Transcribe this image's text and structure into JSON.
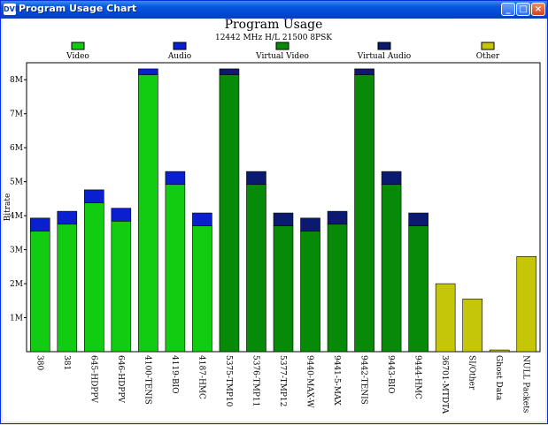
{
  "window": {
    "icon_text": "DVB",
    "title": "Program Usage Chart",
    "buttons": {
      "minimize": "_",
      "maximize": "□",
      "close": "×"
    }
  },
  "colors": {
    "video": "#11cc11",
    "audio": "#0a1fd0",
    "virtual_video": "#078a07",
    "virtual_audio": "#0a1a70",
    "other": "#c6c608"
  },
  "chart_data": {
    "type": "bar",
    "stacked": true,
    "title": "Program Usage",
    "subtitle": "12442 MHz H/L 21500 8PSK",
    "xlabel": "",
    "ylabel": "Bitrate",
    "ylim": [
      0,
      8500000
    ],
    "yticks": [
      1000000,
      2000000,
      3000000,
      4000000,
      5000000,
      6000000,
      7000000,
      8000000
    ],
    "ytick_labels": [
      "1M",
      "2M",
      "3M",
      "4M",
      "5M",
      "6M",
      "7M",
      "8M"
    ],
    "grid": false,
    "legend_position": "top",
    "categories": [
      "380",
      "381",
      "645-HDPPV",
      "646-HDPPV",
      "4100-TENIS",
      "4119-BIO",
      "4187-HMC",
      "5375-TMP10",
      "5376-TMP11",
      "5377-TMP12",
      "9440-MAX-W",
      "9441-5-MAX",
      "9442-TENIS",
      "9443-BIO",
      "9444-HMC",
      "36701-MTDTA",
      "SI/Other",
      "Ghost Data",
      "NULL Packets"
    ],
    "series": [
      {
        "name": "Video",
        "color": "#11cc11",
        "values": [
          3550000,
          3750000,
          4380000,
          3840000,
          8150000,
          4920000,
          3700000,
          0,
          0,
          0,
          0,
          0,
          0,
          0,
          0,
          0,
          0,
          0,
          0
        ]
      },
      {
        "name": "Audio",
        "color": "#0a1fd0",
        "values": [
          380000,
          380000,
          380000,
          380000,
          170000,
          380000,
          380000,
          0,
          0,
          0,
          0,
          0,
          0,
          0,
          0,
          0,
          0,
          0,
          0
        ]
      },
      {
        "name": "Virtual Video",
        "color": "#078a07",
        "values": [
          0,
          0,
          0,
          0,
          0,
          0,
          0,
          8150000,
          4920000,
          3700000,
          3550000,
          3750000,
          8150000,
          4920000,
          3700000,
          0,
          0,
          0,
          0
        ]
      },
      {
        "name": "Virtual Audio",
        "color": "#0a1a70",
        "values": [
          0,
          0,
          0,
          0,
          0,
          0,
          0,
          170000,
          380000,
          380000,
          380000,
          380000,
          170000,
          380000,
          380000,
          0,
          0,
          0,
          0
        ]
      },
      {
        "name": "Other",
        "color": "#c6c608",
        "values": [
          0,
          0,
          0,
          0,
          0,
          0,
          0,
          0,
          0,
          0,
          0,
          0,
          0,
          0,
          0,
          2000000,
          1550000,
          50000,
          2800000
        ]
      }
    ]
  }
}
